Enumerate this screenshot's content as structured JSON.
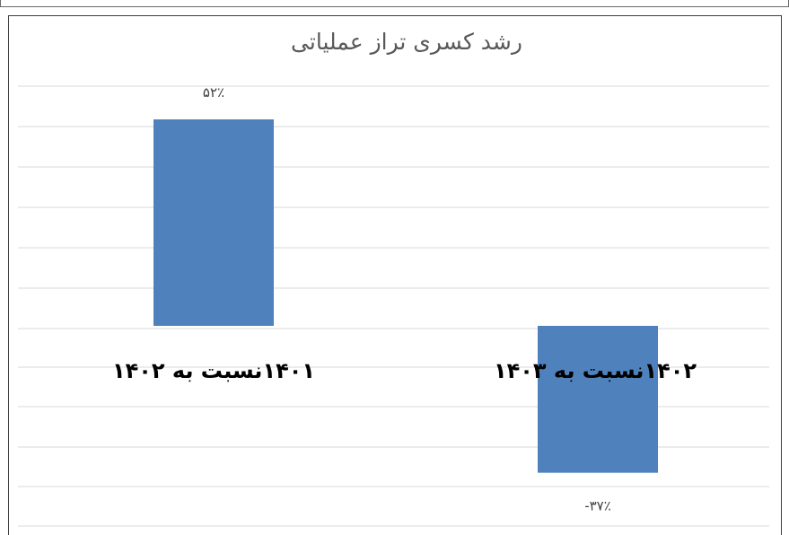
{
  "chart_data": {
    "type": "bar",
    "title": "رشد کسری تراز عملیاتی",
    "categories": [
      "۱۴۰۱نسبت به ۱۴۰۲",
      "۱۴۰۲نسبت به ۱۴۰۳"
    ],
    "values": [
      52,
      -37
    ],
    "value_unit": "%",
    "data_labels": [
      "۵۲٪",
      "-۳۷٪"
    ],
    "ylim": [
      -40,
      60
    ],
    "grid": true,
    "legend": "none",
    "bar_color": "#4f81bd",
    "gridline_color": "#d9d9d9"
  }
}
